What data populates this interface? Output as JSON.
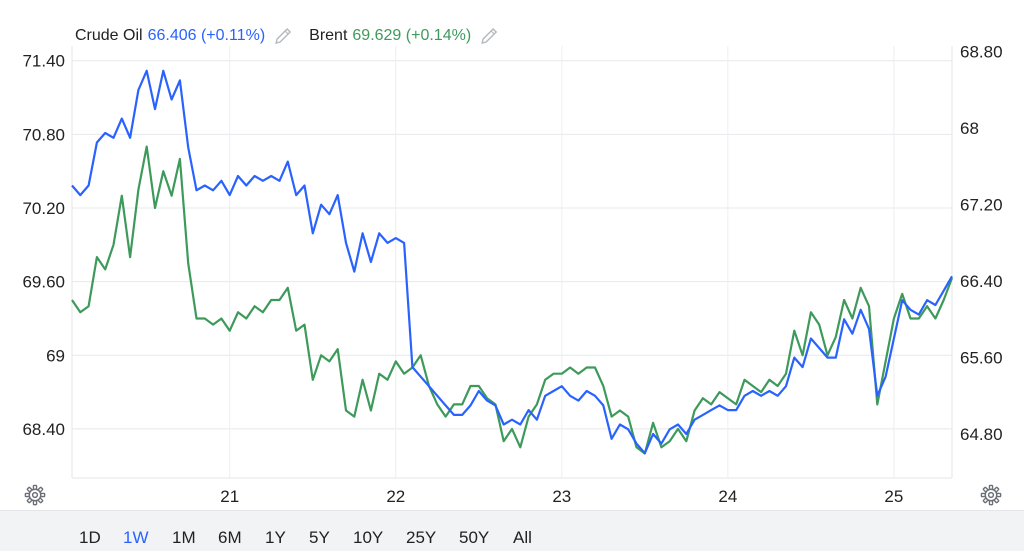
{
  "legend": [
    {
      "name": "Crude Oil",
      "value": "66.406",
      "change": "(+0.11%)",
      "color": "#2962ff",
      "icon": "pencil-icon"
    },
    {
      "name": "Brent",
      "value": "69.629",
      "change": "(+0.14%)",
      "color": "#3d9a5b",
      "icon": "pencil-icon"
    }
  ],
  "footer": {
    "ranges": [
      "1D",
      "1W",
      "1M",
      "6M",
      "1Y",
      "5Y",
      "10Y",
      "25Y",
      "50Y",
      "All"
    ],
    "selected": "1W"
  },
  "settings_icon": "gear-icon",
  "chart_data": {
    "type": "line",
    "x_tick_labels": [
      "21",
      "22",
      "23",
      "24",
      "25"
    ],
    "x_range": [
      20.05,
      25.35
    ],
    "left_axis": {
      "ticks": [
        "71.40",
        "70.80",
        "70.20",
        "69.60",
        "69",
        "68.40"
      ],
      "ylim": [
        68.0,
        71.52
      ],
      "series": "Brent"
    },
    "right_axis": {
      "ticks": [
        "68.80",
        "68",
        "67.20",
        "66.40",
        "65.60",
        "64.80"
      ],
      "ylim": [
        64.34,
        68.86
      ],
      "series": "Crude Oil"
    },
    "grid": true,
    "legend_position": "top-left",
    "series": [
      {
        "name": "Crude Oil",
        "axis": "right",
        "color": "#2962ff",
        "x": [
          20.05,
          20.1,
          20.15,
          20.2,
          20.25,
          20.3,
          20.35,
          20.4,
          20.45,
          20.5,
          20.55,
          20.6,
          20.65,
          20.7,
          20.75,
          20.8,
          20.85,
          20.9,
          20.95,
          21.0,
          21.05,
          21.1,
          21.15,
          21.2,
          21.25,
          21.3,
          21.35,
          21.4,
          21.45,
          21.5,
          21.55,
          21.6,
          21.65,
          21.7,
          21.75,
          21.8,
          21.85,
          21.9,
          21.95,
          22.0,
          22.05,
          22.1,
          22.15,
          22.2,
          22.25,
          22.3,
          22.35,
          22.4,
          22.45,
          22.5,
          22.55,
          22.6,
          22.65,
          22.7,
          22.75,
          22.8,
          22.85,
          22.9,
          22.95,
          23.0,
          23.05,
          23.1,
          23.15,
          23.2,
          23.25,
          23.3,
          23.35,
          23.4,
          23.45,
          23.5,
          23.55,
          23.6,
          23.65,
          23.7,
          23.75,
          23.8,
          23.85,
          23.9,
          23.95,
          24.0,
          24.05,
          24.1,
          24.15,
          24.2,
          24.25,
          24.3,
          24.35,
          24.4,
          24.45,
          24.5,
          24.55,
          24.6,
          24.65,
          24.7,
          24.75,
          24.8,
          24.85,
          24.9,
          24.95,
          25.0,
          25.05,
          25.1,
          25.15,
          25.2,
          25.25,
          25.3,
          25.35
        ],
        "y": [
          67.4,
          67.3,
          67.4,
          67.85,
          67.95,
          67.9,
          68.1,
          67.9,
          68.4,
          68.6,
          68.2,
          68.6,
          68.3,
          68.5,
          67.8,
          67.35,
          67.4,
          67.35,
          67.45,
          67.3,
          67.5,
          67.4,
          67.5,
          67.45,
          67.5,
          67.45,
          67.65,
          67.3,
          67.4,
          66.9,
          67.2,
          67.1,
          67.3,
          66.8,
          66.5,
          66.9,
          66.6,
          66.9,
          66.8,
          66.85,
          66.8,
          65.5,
          65.4,
          65.3,
          65.2,
          65.1,
          65.0,
          65.0,
          65.1,
          65.25,
          65.15,
          65.1,
          64.9,
          64.95,
          64.9,
          65.05,
          64.95,
          65.2,
          65.25,
          65.3,
          65.2,
          65.15,
          65.25,
          65.2,
          65.1,
          64.75,
          64.9,
          64.85,
          64.7,
          64.6,
          64.8,
          64.7,
          64.85,
          64.9,
          64.8,
          64.95,
          65.0,
          65.05,
          65.1,
          65.05,
          65.05,
          65.2,
          65.25,
          65.2,
          65.25,
          65.2,
          65.3,
          65.6,
          65.5,
          65.8,
          65.7,
          65.6,
          65.6,
          66.0,
          65.85,
          66.1,
          65.9,
          65.2,
          65.4,
          65.8,
          66.2,
          66.1,
          66.05,
          66.2,
          66.15,
          66.3,
          66.45
        ]
      },
      {
        "name": "Brent",
        "axis": "left",
        "color": "#3d9a5b",
        "x": [
          20.05,
          20.1,
          20.15,
          20.2,
          20.25,
          20.3,
          20.35,
          20.4,
          20.45,
          20.5,
          20.55,
          20.6,
          20.65,
          20.7,
          20.75,
          20.8,
          20.85,
          20.9,
          20.95,
          21.0,
          21.05,
          21.1,
          21.15,
          21.2,
          21.25,
          21.3,
          21.35,
          21.4,
          21.45,
          21.5,
          21.55,
          21.6,
          21.65,
          21.7,
          21.75,
          21.8,
          21.85,
          21.9,
          21.95,
          22.0,
          22.05,
          22.1,
          22.15,
          22.2,
          22.25,
          22.3,
          22.35,
          22.4,
          22.45,
          22.5,
          22.55,
          22.6,
          22.65,
          22.7,
          22.75,
          22.8,
          22.85,
          22.9,
          22.95,
          23.0,
          23.05,
          23.1,
          23.15,
          23.2,
          23.25,
          23.3,
          23.35,
          23.4,
          23.45,
          23.5,
          23.55,
          23.6,
          23.65,
          23.7,
          23.75,
          23.8,
          23.85,
          23.9,
          23.95,
          24.0,
          24.05,
          24.1,
          24.15,
          24.2,
          24.25,
          24.3,
          24.35,
          24.4,
          24.45,
          24.5,
          24.55,
          24.6,
          24.65,
          24.7,
          24.75,
          24.8,
          24.85,
          24.9,
          24.95,
          25.0,
          25.05,
          25.1,
          25.15,
          25.2,
          25.25,
          25.3,
          25.35
        ],
        "y": [
          69.45,
          69.35,
          69.4,
          69.8,
          69.7,
          69.9,
          70.3,
          69.8,
          70.35,
          70.7,
          70.2,
          70.5,
          70.3,
          70.6,
          69.75,
          69.3,
          69.3,
          69.25,
          69.3,
          69.2,
          69.35,
          69.3,
          69.4,
          69.35,
          69.45,
          69.45,
          69.55,
          69.2,
          69.25,
          68.8,
          69.0,
          68.95,
          69.05,
          68.55,
          68.5,
          68.8,
          68.55,
          68.85,
          68.8,
          68.95,
          68.85,
          68.9,
          69.0,
          68.75,
          68.6,
          68.5,
          68.6,
          68.6,
          68.75,
          68.75,
          68.65,
          68.6,
          68.3,
          68.4,
          68.25,
          68.5,
          68.6,
          68.8,
          68.85,
          68.85,
          68.9,
          68.85,
          68.9,
          68.9,
          68.75,
          68.5,
          68.55,
          68.5,
          68.25,
          68.2,
          68.45,
          68.25,
          68.3,
          68.4,
          68.3,
          68.55,
          68.65,
          68.6,
          68.7,
          68.65,
          68.6,
          68.8,
          68.75,
          68.7,
          68.8,
          68.75,
          68.85,
          69.2,
          69.0,
          69.35,
          69.25,
          69.0,
          69.15,
          69.45,
          69.3,
          69.55,
          69.4,
          68.6,
          68.95,
          69.3,
          69.5,
          69.3,
          69.3,
          69.4,
          69.3,
          69.45,
          69.63
        ]
      }
    ]
  }
}
